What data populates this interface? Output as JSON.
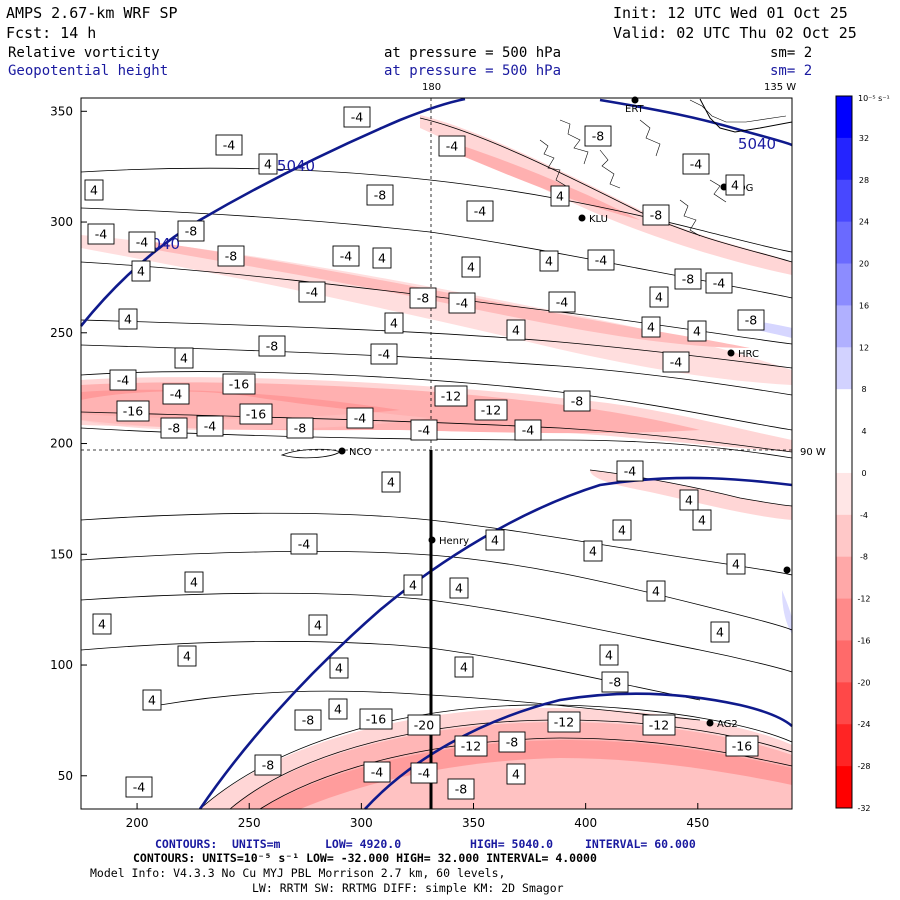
{
  "header": {
    "model": "AMPS 2.67-km WRF SP",
    "forecast": "Fcst:   14 h",
    "init": "Init: 12 UTC Wed 01 Oct 25",
    "valid": "Valid: 02 UTC Thu 02 Oct 25",
    "field1_name": "Relative vorticity",
    "field1_level": "at pressure =  500 hPa",
    "field1_smooth": "sm= 2",
    "field2_name": "Geopotential height",
    "field2_level": "at pressure =  500 hPa",
    "field2_smooth": "sm= 2"
  },
  "map_labels": {
    "lon_180": "180",
    "lon_135w": "135 W",
    "lon_90w": "90 W"
  },
  "colorbar": {
    "unit_label": "10⁻⁵ s⁻¹",
    "ticks": [
      "32",
      "28",
      "24",
      "20",
      "16",
      "12",
      "8",
      "4",
      "0",
      "-4",
      "-8",
      "-12",
      "-16",
      "-20",
      "-24",
      "-28",
      "-32"
    ],
    "colors": [
      "#0000ff",
      "#2424ff",
      "#4848ff",
      "#6a6aff",
      "#8c8cff",
      "#b0b0ff",
      "#d2d2ff",
      "#ffffff",
      "#ffffff",
      "#ffe6e6",
      "#ffc8c8",
      "#ffa8a8",
      "#ff8a8a",
      "#ff6a6a",
      "#ff4848",
      "#ff2424",
      "#ff0000"
    ]
  },
  "footer": {
    "line1_label": "CONTOURS:",
    "line1_units": "UNITS=m",
    "line1_low": "LOW=  4920.0",
    "line1_high": "HIGH=  5040.0",
    "line1_interval": "INTERVAL=  60.000",
    "line2": "CONTOURS:  UNITS=10⁻⁵ s⁻¹  LOW= -32.000       HIGH=  32.000    INTERVAL=  4.0000",
    "line3": "Model Info: V4.3.3    No Cu    MYJ PBL  Morrison          2.7 km,  60 levels,",
    "line4": "LW: RRTM SW: RRTMG   DIFF: simple KM: 2D Smagor"
  },
  "stations": [
    "ERT",
    "RDG",
    "KLU",
    "HRC",
    "NCO",
    "Henry",
    "AG2"
  ],
  "chart_data": {
    "type": "contour-map",
    "title": "Relative vorticity and Geopotential height at 500 hPa",
    "x_ticks": [
      "200",
      "250",
      "300",
      "350",
      "400",
      "450"
    ],
    "y_ticks": [
      "50",
      "100",
      "150",
      "200",
      "250",
      "300",
      "350"
    ],
    "xlim": [
      175,
      492
    ],
    "ylim": [
      35,
      356
    ],
    "height_labels": [
      "5040",
      "5040",
      "5040"
    ],
    "vorticity_labels": [
      "-4",
      "-4",
      "-4",
      "-8",
      "4",
      "-4",
      "4",
      "-8",
      "4",
      "4",
      "-4",
      "-8",
      "-4",
      "-4",
      "-8",
      "-8",
      "-4",
      "4",
      "4",
      "4",
      "-4",
      "-8",
      "-4",
      "4",
      "-4",
      "4",
      "4",
      "4",
      "-8",
      "-8",
      "-4",
      "-4",
      "4",
      "4",
      "4",
      "-4",
      "4",
      "-8",
      "-4",
      "-4",
      "-16",
      "-4",
      "-12",
      "-16",
      "-16",
      "-4",
      "-8",
      "-4",
      "-8",
      "-12",
      "-8",
      "-4",
      "-4",
      "4",
      "-4",
      "4",
      "4",
      "-4",
      "4",
      "4",
      "4",
      "4",
      "4",
      "4",
      "4",
      "4",
      "4",
      "4",
      "4",
      "4",
      "4",
      "4",
      "4",
      "4",
      "4",
      "-8",
      "-8",
      "-16",
      "-20",
      "-12",
      "-12",
      "-16",
      "-12",
      "-8",
      "-8",
      "-4",
      "-4",
      "4",
      "-8",
      "-4"
    ]
  }
}
